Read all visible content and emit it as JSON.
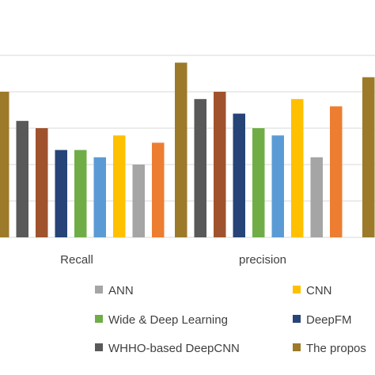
{
  "chart_data": {
    "type": "bar",
    "categories": [
      "Recall",
      "precision"
    ],
    "ylim": [
      0,
      100
    ],
    "grid": true,
    "legend_position": "bottom",
    "series": [
      {
        "name": "The propos",
        "color": "#9C7A2A",
        "values": [
          80,
          96
        ]
      },
      {
        "name": "WHHO-based DeepCNN",
        "color": "#595959",
        "values": [
          64,
          76
        ]
      },
      {
        "name": "",
        "color": "#A0522D",
        "values": [
          60,
          80
        ]
      },
      {
        "name": "DeepFM",
        "color": "#264478",
        "values": [
          48,
          68
        ]
      },
      {
        "name": "Wide & Deep Learning",
        "color": "#70AD47",
        "values": [
          48,
          60
        ]
      },
      {
        "name": "",
        "color": "#5B9BD5",
        "values": [
          44,
          56
        ]
      },
      {
        "name": "CNN",
        "color": "#FFC000",
        "values": [
          56,
          76
        ]
      },
      {
        "name": "ANN",
        "color": "#A5A5A5",
        "values": [
          40,
          44
        ]
      },
      {
        "name": "",
        "color": "#ED7D31",
        "values": [
          52,
          72
        ]
      }
    ],
    "partial_next_group_value": 88,
    "legend": [
      {
        "label": "ANN",
        "color": "#A5A5A5"
      },
      {
        "label": "CNN",
        "color": "#FFC000"
      },
      {
        "label": "Wide & Deep Learning",
        "color": "#70AD47"
      },
      {
        "label": "DeepFM",
        "color": "#264478"
      },
      {
        "label": "WHHO-based DeepCNN",
        "color": "#595959"
      },
      {
        "label": "The propos",
        "color": "#9C7A2A"
      }
    ]
  }
}
